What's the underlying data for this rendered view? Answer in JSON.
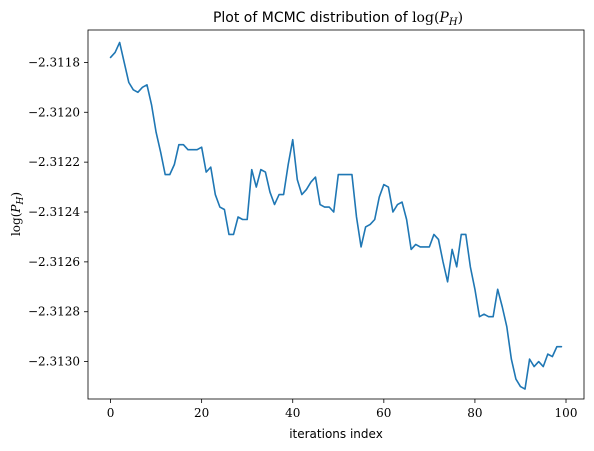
{
  "chart_data": {
    "type": "line",
    "title": "Plot of MCMC distribution of log(P_H)",
    "xlabel": "iterations index",
    "ylabel": "log(P_H)",
    "xlim": [
      -4.95,
      103.95
    ],
    "ylim": [
      -2.31315,
      -2.31167
    ],
    "xticks": [
      0,
      20,
      40,
      60,
      80,
      100
    ],
    "yticks": [
      -2.313,
      -2.3128,
      -2.3126,
      -2.3124,
      -2.3122,
      -2.312,
      -2.3118
    ],
    "xtick_labels": [
      "0",
      "20",
      "40",
      "60",
      "80",
      "100"
    ],
    "ytick_labels": [
      "−2.3130",
      "−2.3128",
      "−2.3126",
      "−2.3124",
      "−2.3122",
      "−2.3120",
      "−2.3118"
    ],
    "grid": false,
    "series": [
      {
        "color": "#1f77b4",
        "x": [
          0,
          1,
          2,
          3,
          4,
          5,
          6,
          7,
          8,
          9,
          10,
          11,
          12,
          13,
          14,
          15,
          16,
          17,
          18,
          19,
          20,
          21,
          22,
          23,
          24,
          25,
          26,
          27,
          28,
          29,
          30,
          31,
          32,
          33,
          34,
          35,
          36,
          37,
          38,
          39,
          40,
          41,
          42,
          43,
          44,
          45,
          46,
          47,
          48,
          49,
          50,
          51,
          52,
          53,
          54,
          55,
          56,
          57,
          58,
          59,
          60,
          61,
          62,
          63,
          64,
          65,
          66,
          67,
          68,
          69,
          70,
          71,
          72,
          73,
          74,
          75,
          76,
          77,
          78,
          79,
          80,
          81,
          82,
          83,
          84,
          85,
          86,
          87,
          88,
          89,
          90,
          91,
          92,
          93,
          94,
          95,
          96,
          97,
          98,
          99
        ],
        "y": [
          -2.31178,
          -2.31176,
          -2.31172,
          -2.3118,
          -2.31188,
          -2.31191,
          -2.31192,
          -2.3119,
          -2.31189,
          -2.31197,
          -2.31208,
          -2.31216,
          -2.31225,
          -2.31225,
          -2.31221,
          -2.31213,
          -2.31213,
          -2.31215,
          -2.31215,
          -2.31215,
          -2.31214,
          -2.31224,
          -2.31222,
          -2.31233,
          -2.31238,
          -2.31239,
          -2.31249,
          -2.31249,
          -2.31242,
          -2.31243,
          -2.31243,
          -2.31223,
          -2.3123,
          -2.31223,
          -2.31224,
          -2.31232,
          -2.31237,
          -2.31233,
          -2.31233,
          -2.31221,
          -2.31211,
          -2.31227,
          -2.31233,
          -2.31231,
          -2.31228,
          -2.31226,
          -2.31237,
          -2.31238,
          -2.31238,
          -2.3124,
          -2.31225,
          -2.31225,
          -2.31225,
          -2.31225,
          -2.31242,
          -2.31254,
          -2.31246,
          -2.31245,
          -2.31243,
          -2.31234,
          -2.31229,
          -2.3123,
          -2.3124,
          -2.31237,
          -2.31236,
          -2.31243,
          -2.31255,
          -2.31253,
          -2.31254,
          -2.31254,
          -2.31254,
          -2.31249,
          -2.31251,
          -2.3126,
          -2.31268,
          -2.31255,
          -2.31262,
          -2.31249,
          -2.31249,
          -2.31262,
          -2.31271,
          -2.31282,
          -2.31281,
          -2.31282,
          -2.31282,
          -2.31271,
          -2.31278,
          -2.31286,
          -2.31299,
          -2.31307,
          -2.3131,
          -2.31311,
          -2.31299,
          -2.31302,
          -2.313,
          -2.31302,
          -2.31297,
          -2.31298,
          -2.31294,
          -2.31294
        ]
      }
    ]
  }
}
